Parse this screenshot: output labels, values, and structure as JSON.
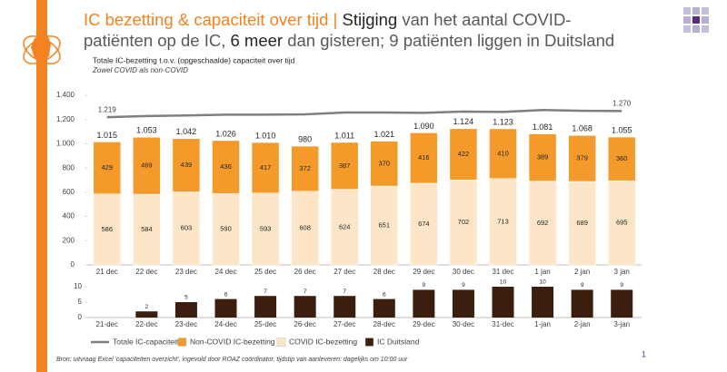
{
  "header": {
    "title": [
      "IC bezetting & capaciteit over tijd |",
      "Stijging",
      "van het aantal COVID-patiënten op de IC,",
      "6 meer",
      "dan gisteren; 9 patiënten liggen in Duitsland"
    ]
  },
  "source": "Bron: uitvraag Excel 'capaciteiten overzicht', ingevuld door ROAZ coördinator, tijdstip van aanleveren: dagelijks om 10:00 uur",
  "page_number": "1",
  "chart_data": [
    {
      "type": "bar",
      "stacked": true,
      "title": "Totale IC-bezetting t.o.v. (opgeschaalde) capaciteit over tijd",
      "subtitle": "Zowel COVID als non-COVID",
      "categories": [
        "21 dec",
        "22 dec",
        "23 dec",
        "24 dec",
        "25 dec",
        "26 dec",
        "27 dec",
        "28 dec",
        "29 dec",
        "30 dec",
        "31 dec",
        "1 jan",
        "2 jan",
        "3 jan"
      ],
      "series": [
        {
          "name": "COVID IC-bezetting",
          "color": "#fde6c8",
          "values": [
            586,
            584,
            603,
            590,
            593,
            608,
            624,
            651,
            674,
            702,
            713,
            692,
            689,
            695
          ]
        },
        {
          "name": "Non-COVID IC-bezetting",
          "color": "#f39a2a",
          "values": [
            429,
            469,
            439,
            436,
            417,
            372,
            387,
            370,
            416,
            422,
            410,
            389,
            379,
            360
          ]
        },
        {
          "name": "Totale IC-capaciteit",
          "type": "line",
          "color": "#7f7f7f",
          "values": [
            1219,
            1229,
            1233,
            1240,
            1240,
            1243,
            1258,
            1258,
            1255,
            1265,
            1262,
            1278,
            1272,
            1270
          ],
          "value_labels": [
            "1.219",
            null,
            null,
            null,
            null,
            null,
            null,
            null,
            null,
            null,
            null,
            null,
            null,
            "1.270"
          ]
        }
      ],
      "totals": {
        "values": [
          1015,
          1053,
          1042,
          1026,
          1010,
          980,
          1011,
          1021,
          1090,
          1124,
          1123,
          1081,
          1068,
          1055
        ],
        "value_labels": [
          "1.015",
          "1.053",
          "1.042",
          "1.026",
          "1.010",
          "980",
          "1.011",
          "1.021",
          "1.090",
          "1.124",
          "1.123",
          "1.081",
          "1.068",
          "1.055"
        ]
      },
      "ylim": [
        0,
        1400
      ],
      "yticks": [
        0,
        200,
        400,
        600,
        800,
        {
          "value": 1000,
          "label": "1.000"
        },
        {
          "value": 1200,
          "label": "1.200"
        },
        {
          "value": 1400,
          "label": "1.400"
        }
      ]
    },
    {
      "type": "bar",
      "categories": [
        "21-dec",
        "22-dec",
        "23-dec",
        "24-dec",
        "25-dec",
        "26-dec",
        "27-dec",
        "28-dec",
        "29-dec",
        "30-dec",
        "31-dec",
        "1-jan",
        "2-jan",
        "3-jan"
      ],
      "series": [
        {
          "name": "IC Duitsland",
          "color": "#3b1e0e",
          "values": [
            0,
            2,
            5,
            6,
            7,
            7,
            7,
            6,
            9,
            9,
            10,
            10,
            9,
            9
          ],
          "value_labels": [
            null,
            "2",
            "5",
            "6",
            "7",
            "7",
            "7",
            "6",
            "9",
            "9",
            "10",
            "10",
            "9",
            "9"
          ]
        }
      ],
      "ylim": [
        0,
        10
      ],
      "yticks": [
        0,
        5,
        10
      ]
    }
  ]
}
